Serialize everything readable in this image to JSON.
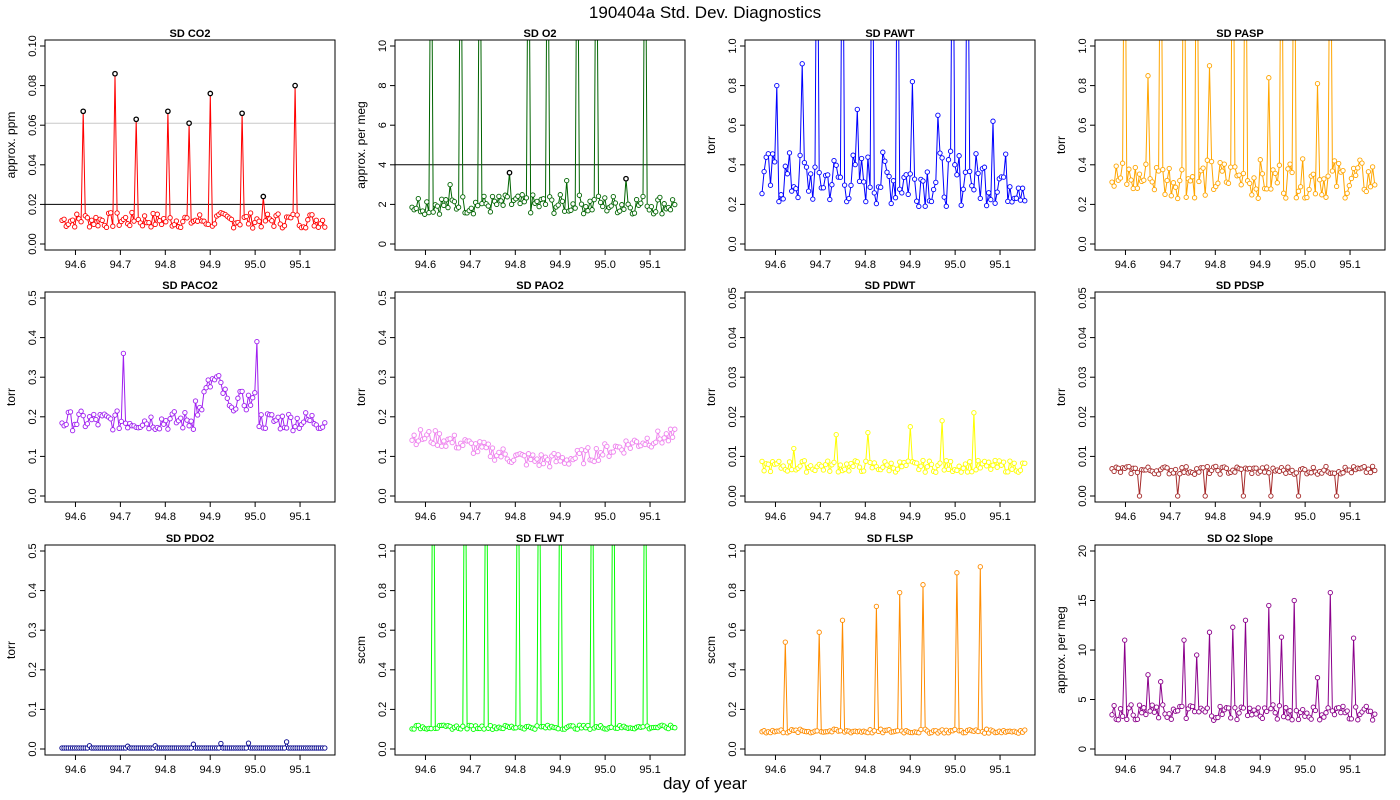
{
  "figure": {
    "title": "190404a   Std. Dev. Diagnostics",
    "xlabel": "day of year"
  },
  "x_ticks": [
    "94.6",
    "94.7",
    "94.8",
    "94.9",
    "95.0",
    "95.1"
  ],
  "chart_data": [
    {
      "type": "line",
      "title": "SD CO2",
      "ylabel": "approx. ppm",
      "ylim": [
        0,
        0.1
      ],
      "yticks": [
        "0.00",
        "0.02",
        "0.04",
        "0.06",
        "0.08",
        "0.10"
      ],
      "color": "#ff0000",
      "hlines": [
        {
          "y": 0.02,
          "color": "#000000"
        },
        {
          "y": 0.061,
          "color": "#c8c8c8"
        }
      ],
      "base": 0.012,
      "noise": 0.004,
      "spikes": [
        0.067,
        0.086,
        0.063,
        0.067,
        0.061,
        0.076,
        0.066,
        0.024,
        0.08
      ],
      "outline_spikes": true,
      "xlim": [
        94.55,
        95.16
      ],
      "x_start": 94.57,
      "x_end": 95.155,
      "n": 125
    },
    {
      "type": "line",
      "title": "SD O2",
      "ylabel": "approx. per meg",
      "ylim": [
        0,
        10
      ],
      "yticks": [
        "0",
        "2",
        "4",
        "6",
        "8",
        "10"
      ],
      "color": "#006400",
      "hlines": [
        {
          "y": 4,
          "color": "#000000"
        }
      ],
      "base": 2.0,
      "noise": 0.5,
      "spikes": [
        20,
        20,
        20,
        4.1,
        20,
        20,
        20,
        20,
        20,
        20
      ],
      "outline_spikes": true,
      "extra": [
        3.0,
        3.6,
        3.2,
        3.3
      ],
      "xlim": [
        94.55,
        95.16
      ],
      "x_start": 94.57,
      "x_end": 95.155,
      "n": 125
    },
    {
      "type": "line",
      "title": "SD PAWT",
      "ylabel": "torr",
      "ylim": [
        0,
        1
      ],
      "yticks": [
        "0.0",
        "0.2",
        "0.4",
        "0.6",
        "0.8",
        "1.0"
      ],
      "color": "#0000ff",
      "base": 0.33,
      "noise": 0.14,
      "spikes": [
        0.8,
        0.91,
        2,
        2,
        0.68,
        2,
        2,
        0.82,
        0.65,
        2,
        2,
        0.62
      ],
      "xlim": [
        94.55,
        95.16
      ],
      "x_start": 94.57,
      "x_end": 95.155,
      "n": 125
    },
    {
      "type": "line",
      "title": "SD PASP",
      "ylabel": "torr",
      "ylim": [
        0,
        1
      ],
      "yticks": [
        "0.0",
        "0.2",
        "0.4",
        "0.6",
        "0.8",
        "1.0"
      ],
      "color": "#ffa500",
      "base": 0.33,
      "noise": 0.1,
      "spikes": [
        2,
        0.85,
        2,
        2,
        2,
        0.9,
        2,
        2,
        0.84,
        2,
        2,
        0.81,
        2
      ],
      "xlim": [
        94.55,
        95.16
      ],
      "x_start": 94.57,
      "x_end": 95.155,
      "n": 125
    },
    {
      "type": "line",
      "title": "SD PACO2",
      "ylabel": "torr",
      "ylim": [
        0,
        0.5
      ],
      "yticks": [
        "0.0",
        "0.1",
        "0.2",
        "0.3",
        "0.4",
        "0.5"
      ],
      "color": "#a020f0",
      "base": 0.19,
      "noise": 0.025,
      "spikes": [
        0.36,
        0.24,
        0.39
      ],
      "xlim": [
        94.55,
        95.16
      ],
      "x_start": 94.57,
      "x_end": 95.155,
      "n": 125
    },
    {
      "type": "line",
      "title": "SD PAO2",
      "ylabel": "torr",
      "ylim": [
        0,
        0.5
      ],
      "yticks": [
        "0.0",
        "0.1",
        "0.2",
        "0.3",
        "0.4",
        "0.5"
      ],
      "color": "#ee82ee",
      "base": 0.12,
      "noise": 0.02,
      "spikes": [],
      "xlim": [
        94.55,
        95.16
      ],
      "x_start": 94.57,
      "x_end": 95.155,
      "n": 125
    },
    {
      "type": "line",
      "title": "SD PDWT",
      "ylabel": "torr",
      "ylim": [
        0,
        0.05
      ],
      "yticks": [
        "0.00",
        "0.01",
        "0.02",
        "0.03",
        "0.04",
        "0.05"
      ],
      "color": "#ffff00",
      "base": 0.0075,
      "noise": 0.0015,
      "spikes": [
        0.012,
        0.0155,
        0.016,
        0.0175,
        0.019,
        0.021
      ],
      "xlim": [
        94.55,
        95.16
      ],
      "x_start": 94.57,
      "x_end": 95.155,
      "n": 125
    },
    {
      "type": "line",
      "title": "SD PDSP",
      "ylabel": "torr",
      "ylim": [
        0,
        0.05
      ],
      "yticks": [
        "0.00",
        "0.01",
        "0.02",
        "0.03",
        "0.04",
        "0.05"
      ],
      "color": "#a52a2a",
      "base": 0.0065,
      "noise": 0.001,
      "dips": [
        0.0,
        0.0,
        0.0,
        0.0,
        0.0,
        0.0,
        0.0
      ],
      "xlim": [
        94.55,
        95.16
      ],
      "x_start": 94.57,
      "x_end": 95.155,
      "n": 125
    },
    {
      "type": "line",
      "title": "SD PDO2",
      "ylabel": "torr",
      "ylim": [
        0,
        0.5
      ],
      "yticks": [
        "0.0",
        "0.1",
        "0.2",
        "0.3",
        "0.4",
        "0.5"
      ],
      "color": "#00008b",
      "base": 0.002,
      "noise": 0.0005,
      "spikes": [
        0.008,
        0.007,
        0.008,
        0.012,
        0.014,
        0.015,
        0.018
      ],
      "xlim": [
        94.55,
        95.16
      ],
      "x_start": 94.57,
      "x_end": 95.155,
      "n": 125
    },
    {
      "type": "line",
      "title": "SD FLWT",
      "ylabel": "sccm",
      "ylim": [
        0,
        1
      ],
      "yticks": [
        "0.0",
        "0.2",
        "0.4",
        "0.6",
        "0.8",
        "1.0"
      ],
      "color": "#00ff00",
      "base": 0.11,
      "noise": 0.01,
      "spikes": [
        2,
        2,
        2,
        2,
        2,
        2,
        2,
        2,
        2
      ],
      "xlim": [
        94.55,
        95.16
      ],
      "x_start": 94.57,
      "x_end": 95.155,
      "n": 125
    },
    {
      "type": "line",
      "title": "SD FLSP",
      "ylabel": "sccm",
      "ylim": [
        0,
        1
      ],
      "yticks": [
        "0.0",
        "0.2",
        "0.4",
        "0.6",
        "0.8",
        "1.0"
      ],
      "color": "#ff8c00",
      "base": 0.09,
      "noise": 0.01,
      "spikes": [
        0.54,
        0.59,
        0.65,
        0.72,
        0.79,
        0.83,
        0.89,
        0.92
      ],
      "xlim": [
        94.55,
        95.16
      ],
      "x_start": 94.57,
      "x_end": 95.155,
      "n": 125
    },
    {
      "type": "line",
      "title": "SD O2 Slope",
      "ylabel": "approx. per meg",
      "ylim": [
        0,
        20
      ],
      "yticks": [
        "0",
        "5",
        "10",
        "15",
        "20"
      ],
      "color": "#8b008b",
      "base": 3.7,
      "noise": 0.8,
      "spikes": [
        11,
        7.5,
        6.8,
        11,
        9.5,
        11.8,
        12.3,
        13,
        14.5,
        11.3,
        15,
        7.2,
        15.8,
        11.2
      ],
      "xlim": [
        94.55,
        95.16
      ],
      "x_start": 94.57,
      "x_end": 95.155,
      "n": 125
    }
  ]
}
